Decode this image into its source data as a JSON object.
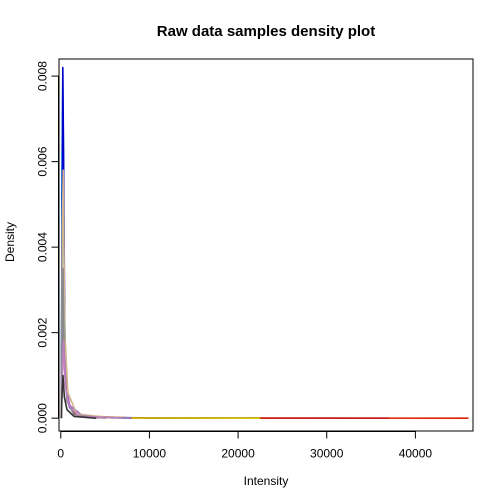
{
  "chart_data": {
    "type": "line",
    "title": "Raw data samples density plot",
    "xlabel": "Intensity",
    "ylabel": "Density",
    "xlim": [
      -200,
      46500
    ],
    "ylim": [
      -0.0003,
      0.0084
    ],
    "x_ticks": [
      0,
      10000,
      20000,
      30000,
      40000
    ],
    "x_tick_labels": [
      "0",
      "10000",
      "20000",
      "30000",
      "40000"
    ],
    "y_ticks": [
      0.0,
      0.002,
      0.004,
      0.006,
      0.008
    ],
    "y_tick_labels": [
      "0.000",
      "0.002",
      "0.004",
      "0.006",
      "0.008"
    ],
    "grid": false,
    "legend": "none",
    "series": [
      {
        "color": "#00c8c8",
        "x": [
          60,
          150,
          220,
          300,
          400,
          600,
          900,
          1500,
          3000,
          8000
        ],
        "y": [
          0,
          0.0062,
          0.0078,
          0.0062,
          0.0028,
          0.0008,
          0.0003,
          0.0001,
          2e-05,
          0
        ],
        "xmax": 8000
      },
      {
        "color": "#0000cc",
        "x": [
          60,
          150,
          230,
          320,
          450,
          650,
          1000,
          1800,
          4000,
          10000,
          20000,
          37000
        ],
        "y": [
          0,
          0.0045,
          0.0082,
          0.006,
          0.002,
          0.0007,
          0.00025,
          8e-05,
          2e-05,
          5e-06,
          1e-06,
          0
        ],
        "xmax": 37000
      },
      {
        "color": "#dd2200",
        "x": [
          60,
          200,
          300,
          500,
          800,
          1500,
          3000,
          10000,
          46000
        ],
        "y": [
          0,
          0.002,
          0.0028,
          0.0011,
          0.0004,
          0.0001,
          2e-05,
          3e-06,
          0
        ],
        "xmax": 46000
      },
      {
        "color": "#cccc00",
        "x": [
          60,
          200,
          300,
          500,
          900,
          2000,
          8000,
          22500
        ],
        "y": [
          0,
          0.0018,
          0.0024,
          0.0009,
          0.0003,
          6e-05,
          5e-06,
          0
        ],
        "xmax": 22500
      },
      {
        "color": "#9966cc",
        "x": [
          60,
          200,
          320,
          550,
          1000,
          2500,
          8000
        ],
        "y": [
          0,
          0.0022,
          0.0026,
          0.0009,
          0.0003,
          5e-05,
          0
        ],
        "xmax": 8000
      },
      {
        "color": "#d2b48c",
        "x": [
          60,
          180,
          280,
          450,
          800,
          1800,
          6000
        ],
        "y": [
          0,
          0.0045,
          0.0058,
          0.002,
          0.0006,
          0.0001,
          0
        ],
        "xmax": 6000
      },
      {
        "color": "#888888",
        "x": [
          60,
          150,
          250,
          400,
          700,
          1500,
          5000
        ],
        "y": [
          0,
          0.0025,
          0.0035,
          0.0012,
          0.0004,
          8e-05,
          0
        ],
        "xmax": 5000
      },
      {
        "color": "#c080c0",
        "x": [
          60,
          200,
          300,
          500,
          900,
          2000,
          7000
        ],
        "y": [
          0,
          0.0012,
          0.0018,
          0.0008,
          0.0003,
          5e-05,
          0
        ],
        "xmax": 7000
      },
      {
        "color": "#333333",
        "x": [
          60,
          150,
          250,
          400,
          700,
          1500,
          4000
        ],
        "y": [
          0,
          0.0006,
          0.001,
          0.0005,
          0.0002,
          4e-05,
          0
        ],
        "xmax": 4000
      }
    ]
  }
}
